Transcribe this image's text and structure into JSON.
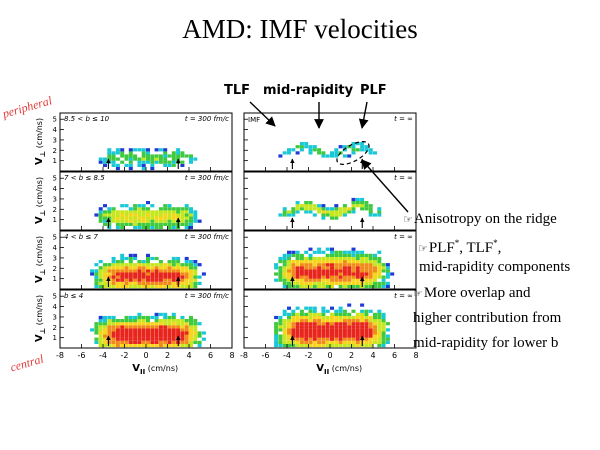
{
  "title": "AMD: IMF velocities",
  "header_labels": {
    "tlf": "TLF",
    "mid": "mid-rapidity",
    "plf": "PLF"
  },
  "side_labels": {
    "top": "peripheral",
    "bottom": "central"
  },
  "bullets": {
    "b1": "Anisotropy on the ridge",
    "b2a": "PLF",
    "b2b": ", TLF",
    "b2c": ",",
    "b2_sup": "*",
    "b3": "mid-rapidity components",
    "b4": "More overlap and",
    "b5": "higher contribution from",
    "b6": "mid-rapidity for lower b"
  },
  "chart_data": {
    "type": "heatmap",
    "xlabel": "V",
    "xlabel_sub": "II",
    "xlabel_unit": "(cm/ns)",
    "ylabel": "V",
    "ylabel_sub": "⊥",
    "ylabel_unit": "(cm/ns)",
    "x_ticks": [
      "-8",
      "-6",
      "-4",
      "-2",
      "0",
      "2",
      "4",
      "6",
      "8"
    ],
    "y_ticks": [
      "1",
      "2",
      "3",
      "4",
      "5"
    ],
    "xlim": [
      -8,
      8
    ],
    "ylim": [
      0,
      5.6
    ],
    "panel_tags": [
      "IMF"
    ],
    "rows": [
      {
        "b_label": "8.5 < b ≤ 10",
        "left_time": "t = 300 fm/c",
        "right_time": "t = ∞",
        "intensity": 0.35,
        "spread": 1.2
      },
      {
        "b_label": "7 < b ≤ 8.5",
        "left_time": "t = 300 fm/c",
        "right_time": "t = ∞",
        "intensity": 0.55,
        "spread": 1.4
      },
      {
        "b_label": "4 < b ≤ 7",
        "left_time": "t = 300 fm/c",
        "right_time": "t = ∞",
        "intensity": 0.9,
        "spread": 1.6
      },
      {
        "b_label": "b ≤ 4",
        "left_time": "t = 300 fm/c",
        "right_time": "t = ∞",
        "intensity": 1.0,
        "spread": 1.8
      }
    ],
    "arrows_x": [
      -3.5,
      3.0
    ],
    "color_scale": [
      "#1f3bd6",
      "#19c8d6",
      "#3fc93f",
      "#c6e61e",
      "#f7d51a",
      "#f28a1a",
      "#e8251c"
    ]
  }
}
